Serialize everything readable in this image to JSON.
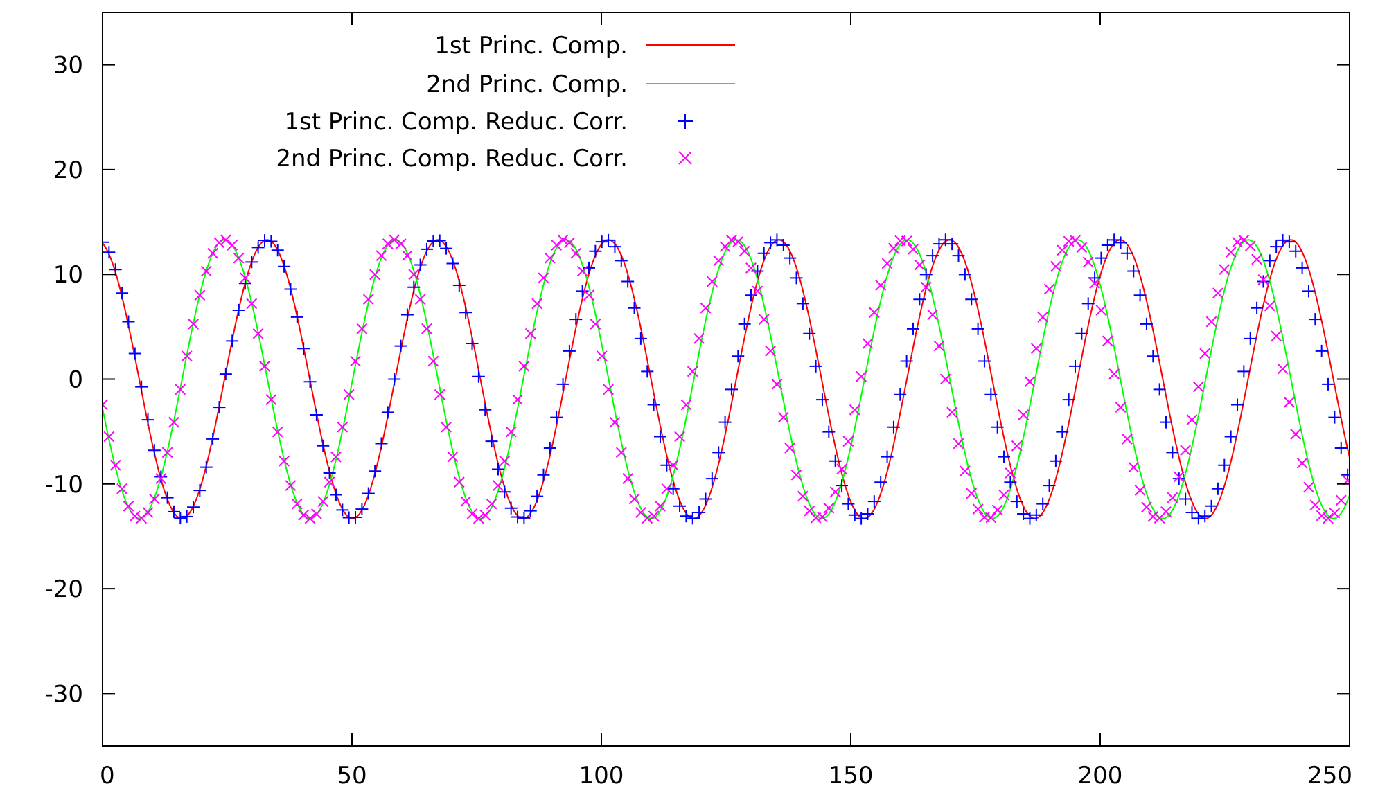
{
  "chart_data": {
    "type": "line",
    "title": "",
    "xlabel": "",
    "ylabel": "",
    "xlim": [
      0,
      250
    ],
    "ylim": [
      -35,
      35
    ],
    "x_ticks": [
      0,
      50,
      100,
      150,
      200,
      250
    ],
    "y_ticks": [
      -30,
      -20,
      -10,
      0,
      10,
      20,
      30
    ],
    "x_tick_labels": [
      "0",
      "50",
      "100",
      "150",
      "200",
      "250"
    ],
    "y_tick_labels": [
      "-30",
      "-20",
      "-10",
      "0",
      "10",
      "20",
      "30"
    ],
    "grid": false,
    "legend_position": "top-left",
    "series": [
      {
        "name": "1st Princ. Comp.",
        "style": "line",
        "color": "#ff0000",
        "amplitude": 13.3,
        "period": 34.2,
        "x_start": 0,
        "x_end": 250,
        "x_at_maximum": 33.0
      },
      {
        "name": "2nd Princ. Comp.",
        "style": "line",
        "color": "#00ff00",
        "amplitude": 13.3,
        "period": 34.2,
        "x_start": 0,
        "x_end": 250,
        "x_at_maximum": 24.5
      },
      {
        "name": "1st Princ. Comp. Reduc. Corr.",
        "style": "points",
        "marker": "+",
        "color": "#0000ff",
        "amplitude": 13.3,
        "period": 34.0,
        "x_start": 0,
        "x_end": 250,
        "x_step": 1.3,
        "x_at_maximum": 33.0
      },
      {
        "name": "2nd Princ. Comp. Reduc. Corr.",
        "style": "points",
        "marker": "x",
        "color": "#ff00ff",
        "amplitude": 13.3,
        "period": 34.0,
        "x_start": 0,
        "x_end": 250,
        "x_step": 1.3,
        "x_at_maximum": 24.5
      }
    ]
  }
}
